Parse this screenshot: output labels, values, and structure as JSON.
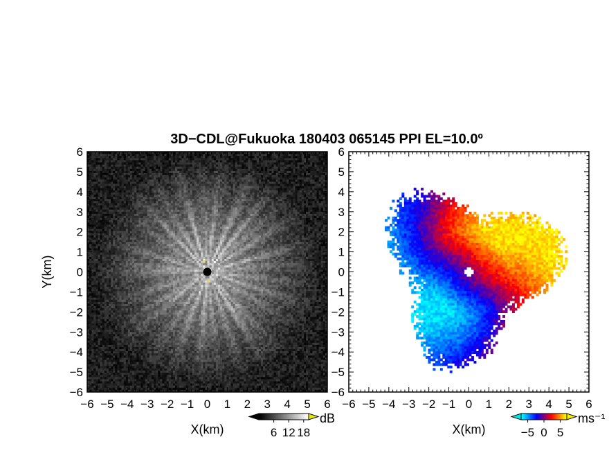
{
  "title": "3D−CDL@Fukuoka 180403 065145 PPI EL=10.0º",
  "chart_data": [
    {
      "type": "heatmap",
      "panel": "left",
      "variable": "dB",
      "xlabel": "X(km)",
      "ylabel": "Y(km)",
      "xlim": [
        -6,
        6
      ],
      "ylim": [
        -6,
        6
      ],
      "xticks": [
        "−6",
        "−5",
        "−4",
        "−3",
        "−2",
        "−1",
        "0",
        "1",
        "2",
        "3",
        "4",
        "5",
        "6"
      ],
      "yticks": [
        "6",
        "5",
        "4",
        "3",
        "2",
        "1",
        "0",
        "−1",
        "−2",
        "−3",
        "−4",
        "−5",
        "−6"
      ],
      "colorbar": {
        "label": "dB",
        "ticks": [
          "6",
          "12",
          "18"
        ],
        "tick_values": [
          6,
          12,
          18
        ],
        "range": [
          0,
          20
        ],
        "colors": [
          "#000000",
          "#ffffff"
        ],
        "extend_colors": [
          "#000000",
          "#e8e800"
        ]
      },
      "radar_center": [
        0,
        0
      ],
      "max_range_km": 5.6
    },
    {
      "type": "heatmap",
      "panel": "right",
      "variable": "ms⁻¹",
      "xlabel": "X(km)",
      "ylabel": "",
      "xlim": [
        -6,
        6
      ],
      "ylim": [
        -6,
        6
      ],
      "xticks": [
        "−6",
        "−5",
        "−4",
        "−3",
        "−2",
        "−1",
        "0",
        "1",
        "2",
        "3",
        "4",
        "5",
        "6"
      ],
      "yticks": [
        "6",
        "5",
        "4",
        "3",
        "2",
        "1",
        "0",
        "−1",
        "−2",
        "−3",
        "−4",
        "−5",
        "−6"
      ],
      "colorbar": {
        "label": "ms⁻¹",
        "ticks": [
          "−5",
          "0",
          "5"
        ],
        "tick_values": [
          -5,
          0,
          5
        ],
        "range": [
          -7,
          7
        ],
        "colors": [
          "#00ffff",
          "#0000ff",
          "#ff0000",
          "#ffff00"
        ],
        "extend_colors": [
          "#00e8e8",
          "#f0f000"
        ]
      },
      "radar_center": [
        0,
        0
      ],
      "max_range_km": 4.8
    }
  ]
}
